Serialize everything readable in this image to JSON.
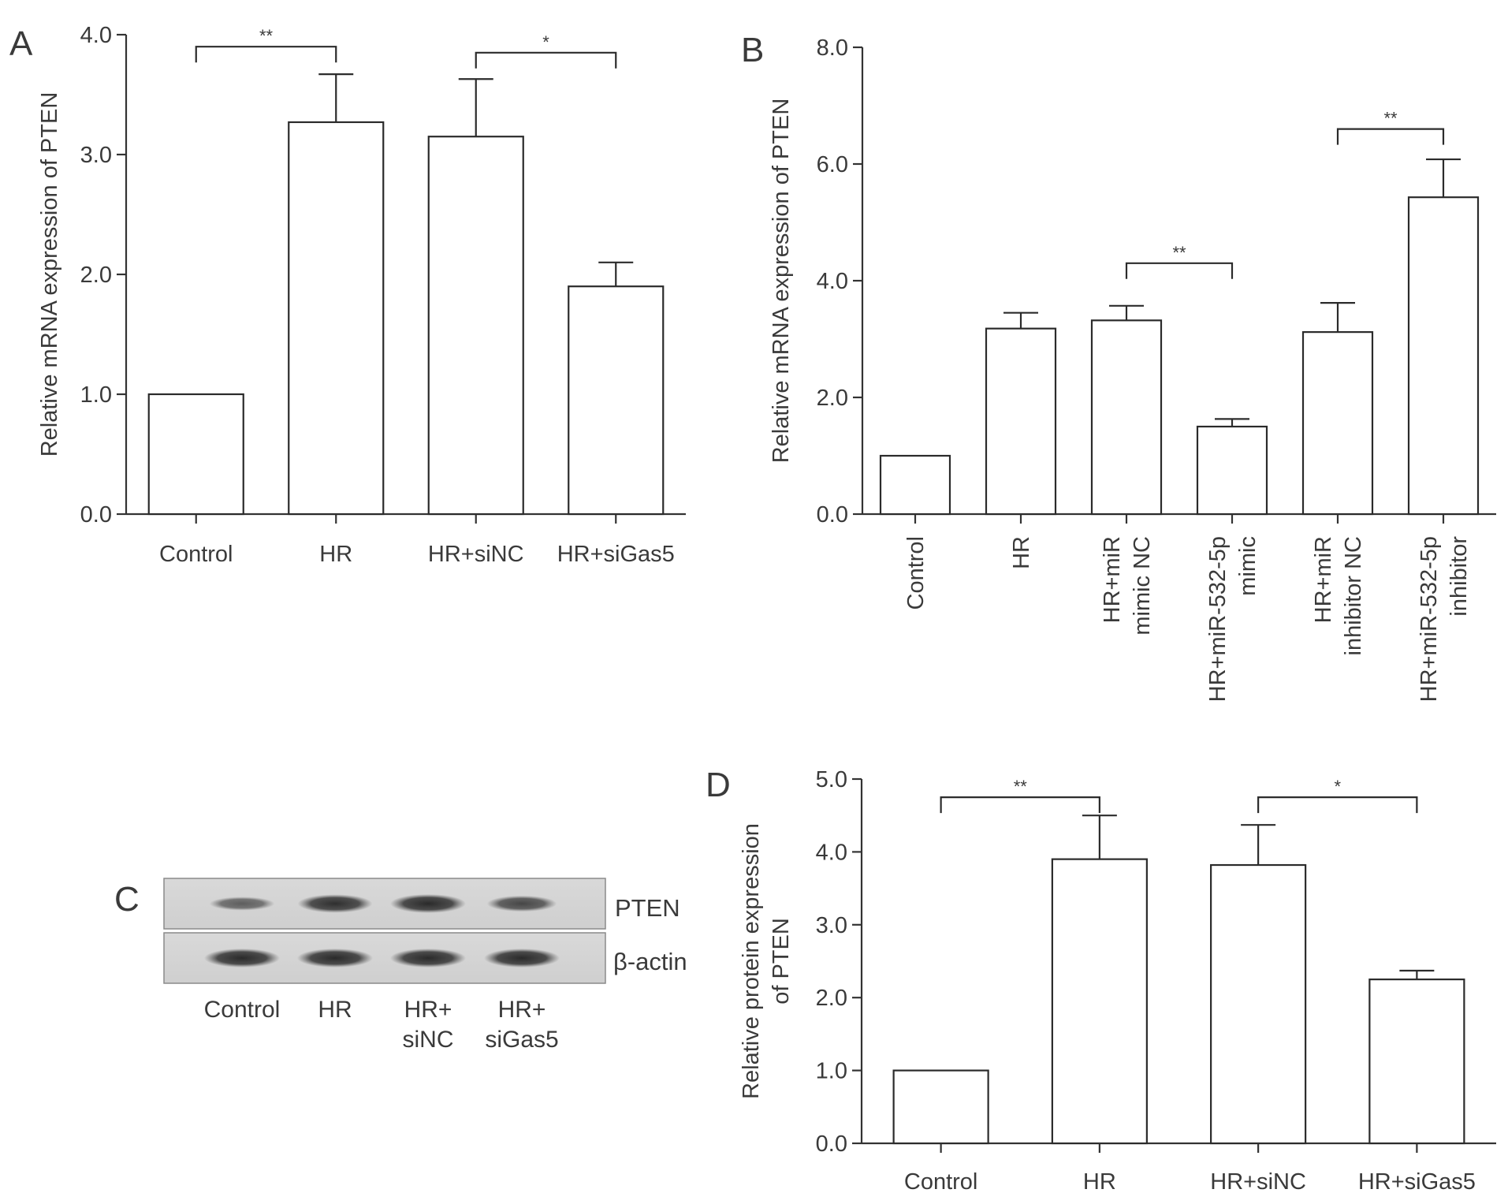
{
  "panels": {
    "A": {
      "label": "A"
    },
    "B": {
      "label": "B"
    },
    "C": {
      "label": "C"
    },
    "D": {
      "label": "D"
    }
  },
  "blot": {
    "rows": [
      "PTEN",
      "β-actin"
    ],
    "lanes": [
      {
        "line1": "Control",
        "line2": ""
      },
      {
        "line1": "HR",
        "line2": ""
      },
      {
        "line1": "HR+",
        "line2": "siNC"
      },
      {
        "line1": "HR+",
        "line2": "siGas5"
      }
    ],
    "band_intensity": {
      "PTEN": [
        0.45,
        0.95,
        1.0,
        0.7
      ],
      "β-actin": [
        1.0,
        1.0,
        1.0,
        1.0
      ]
    }
  },
  "chart_data": [
    {
      "panel": "A",
      "type": "bar",
      "categories": [
        [
          "Control"
        ],
        [
          "HR"
        ],
        [
          "HR+siNC"
        ],
        [
          "HR+siGas5"
        ]
      ],
      "values": [
        1.0,
        3.27,
        3.15,
        1.9
      ],
      "errors": [
        0,
        0.4,
        0.48,
        0.2
      ],
      "ylabel": "Relative mRNA expression of PTEN",
      "xlabel": "",
      "ylim": [
        0,
        4
      ],
      "yticks": [
        "0.0",
        "1.0",
        "2.0",
        "3.0",
        "4.0"
      ],
      "ytick_values": [
        0,
        1,
        2,
        3,
        4
      ],
      "significance": [
        {
          "from": 0,
          "to": 1,
          "y": 3.9,
          "label": "**"
        },
        {
          "from": 2,
          "to": 3,
          "y": 3.85,
          "label": "*"
        }
      ]
    },
    {
      "panel": "B",
      "type": "bar",
      "categories": [
        [
          "Control"
        ],
        [
          "HR"
        ],
        [
          "HR+miR",
          "mimic NC"
        ],
        [
          "HR+miR-532-5p",
          "mimic"
        ],
        [
          "HR+miR",
          "inhibitor NC"
        ],
        [
          "HR+miR-532-5p",
          "inhibitor"
        ]
      ],
      "values": [
        1.0,
        3.18,
        3.32,
        1.5,
        3.12,
        5.43
      ],
      "errors": [
        0,
        0.27,
        0.25,
        0.13,
        0.5,
        0.65
      ],
      "ylabel": "Relative mRNA expression of PTEN",
      "xlabel": "",
      "ylim": [
        0,
        8
      ],
      "yticks": [
        "0.0",
        "2.0",
        "4.0",
        "6.0",
        "8.0"
      ],
      "ytick_values": [
        0,
        2,
        4,
        6,
        8
      ],
      "rotated_labels": true,
      "significance": [
        {
          "from": 2,
          "to": 3,
          "y": 4.3,
          "label": "**"
        },
        {
          "from": 4,
          "to": 5,
          "y": 6.6,
          "label": "**"
        }
      ]
    },
    {
      "panel": "D",
      "type": "bar",
      "categories": [
        [
          "Control"
        ],
        [
          "HR"
        ],
        [
          "HR+siNC"
        ],
        [
          "HR+siGas5"
        ]
      ],
      "values": [
        1.0,
        3.9,
        3.82,
        2.25
      ],
      "errors": [
        0,
        0.6,
        0.55,
        0.12
      ],
      "ylabel": [
        "Relative protein expression",
        "of PTEN"
      ],
      "xlabel": "",
      "ylim": [
        0,
        5
      ],
      "yticks": [
        "0.0",
        "1.0",
        "2.0",
        "3.0",
        "4.0",
        "5.0"
      ],
      "ytick_values": [
        0,
        1,
        2,
        3,
        4,
        5
      ],
      "significance": [
        {
          "from": 0,
          "to": 1,
          "y": 4.75,
          "label": "**"
        },
        {
          "from": 2,
          "to": 3,
          "y": 4.75,
          "label": "*"
        }
      ]
    }
  ]
}
